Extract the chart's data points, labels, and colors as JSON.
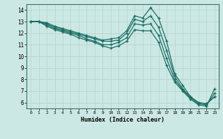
{
  "xlabel": "Humidex (Indice chaleur)",
  "ylabel": "",
  "bg_color": "#cce8e4",
  "line_color": "#1a6e64",
  "grid_color": "#b8d8d4",
  "xlim": [
    -0.5,
    23.5
  ],
  "ylim": [
    5.5,
    14.5
  ],
  "yticks": [
    6,
    7,
    8,
    9,
    10,
    11,
    12,
    13,
    14
  ],
  "xticks": [
    0,
    1,
    2,
    3,
    4,
    5,
    6,
    7,
    8,
    9,
    10,
    11,
    12,
    13,
    14,
    15,
    16,
    17,
    18,
    19,
    20,
    21,
    22,
    23
  ],
  "series": [
    {
      "x": [
        0,
        1,
        2,
        3,
        4,
        5,
        6,
        7,
        8,
        9,
        10,
        11,
        12,
        13,
        14,
        15,
        16,
        17,
        18,
        19,
        20,
        21,
        22,
        23
      ],
      "y": [
        13.0,
        13.0,
        12.9,
        12.6,
        12.4,
        12.2,
        12.0,
        11.8,
        11.6,
        11.4,
        11.5,
        11.6,
        12.2,
        13.5,
        13.3,
        14.2,
        13.3,
        11.3,
        8.5,
        7.5,
        6.5,
        6.0,
        5.9,
        6.5
      ]
    },
    {
      "x": [
        0,
        1,
        2,
        3,
        4,
        5,
        6,
        7,
        8,
        9,
        10,
        11,
        12,
        13,
        14,
        15,
        16,
        17,
        18,
        19,
        20,
        21,
        22,
        23
      ],
      "y": [
        13.0,
        13.0,
        12.8,
        12.5,
        12.3,
        12.1,
        11.9,
        11.7,
        11.5,
        11.3,
        11.3,
        11.4,
        12.0,
        13.2,
        13.0,
        13.5,
        12.5,
        10.5,
        8.3,
        7.2,
        6.5,
        6.0,
        5.9,
        6.5
      ]
    },
    {
      "x": [
        0,
        1,
        2,
        3,
        4,
        5,
        6,
        7,
        8,
        9,
        10,
        11,
        12,
        13,
        14,
        15,
        16,
        17,
        18,
        19,
        20,
        21,
        22,
        23
      ],
      "y": [
        13.0,
        13.0,
        12.7,
        12.4,
        12.2,
        12.0,
        11.8,
        11.5,
        11.3,
        11.0,
        11.0,
        11.2,
        11.6,
        12.8,
        12.7,
        12.8,
        11.8,
        9.8,
        8.0,
        7.1,
        6.4,
        5.9,
        5.8,
        6.8
      ]
    },
    {
      "x": [
        0,
        1,
        2,
        3,
        4,
        5,
        6,
        7,
        8,
        9,
        10,
        11,
        12,
        13,
        14,
        15,
        16,
        17,
        18,
        19,
        20,
        21,
        22,
        23
      ],
      "y": [
        13.0,
        13.0,
        12.6,
        12.3,
        12.1,
        11.9,
        11.6,
        11.4,
        11.2,
        10.9,
        10.7,
        10.9,
        11.3,
        12.3,
        12.2,
        12.2,
        11.2,
        9.2,
        7.8,
        7.0,
        6.3,
        5.8,
        5.7,
        7.2
      ]
    }
  ]
}
